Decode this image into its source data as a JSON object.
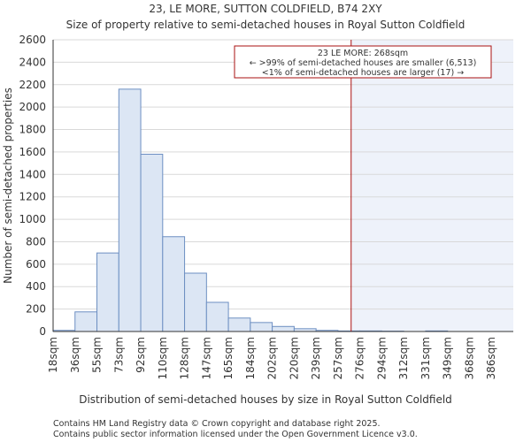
{
  "chart_data": {
    "type": "bar",
    "title": "23, LE MORE, SUTTON COLDFIELD, B74 2XY",
    "subtitle": "Size of property relative to semi-detached houses in Royal Sutton Coldfield",
    "xlabel": "Distribution of semi-detached houses by size in Royal Sutton Coldfield",
    "ylabel": "Number of semi-detached properties",
    "categories": [
      "18sqm",
      "36sqm",
      "55sqm",
      "73sqm",
      "92sqm",
      "110sqm",
      "128sqm",
      "147sqm",
      "165sqm",
      "184sqm",
      "202sqm",
      "220sqm",
      "239sqm",
      "257sqm",
      "276sqm",
      "294sqm",
      "312sqm",
      "331sqm",
      "349sqm",
      "368sqm",
      "386sqm"
    ],
    "values": [
      10,
      175,
      700,
      2160,
      1580,
      845,
      520,
      260,
      120,
      80,
      45,
      25,
      10,
      5,
      5,
      3,
      0,
      5,
      0,
      0,
      0
    ],
    "ylim": [
      0,
      2600
    ],
    "yticks": [
      "0",
      "200",
      "400",
      "600",
      "800",
      "1000",
      "1200",
      "1400",
      "1600",
      "1800",
      "2000",
      "2200",
      "2400",
      "2600"
    ],
    "marker": {
      "value": 268,
      "position_bins": 13.6,
      "annotation_lines": [
        "23 LE MORE: 268sqm",
        "← >99% of semi-detached houses are smaller (6,513)",
        "<1% of semi-detached houses are larger (17) →"
      ]
    },
    "colors": {
      "bar_fill": "#dce6f4",
      "bar_stroke": "#6d8fc2",
      "marker": "#aa1111",
      "highlight": "#eef2fa"
    }
  },
  "footer": {
    "line1": "Contains HM Land Registry data © Crown copyright and database right 2025.",
    "line2": "Contains public sector information licensed under the Open Government Licence v3.0."
  }
}
